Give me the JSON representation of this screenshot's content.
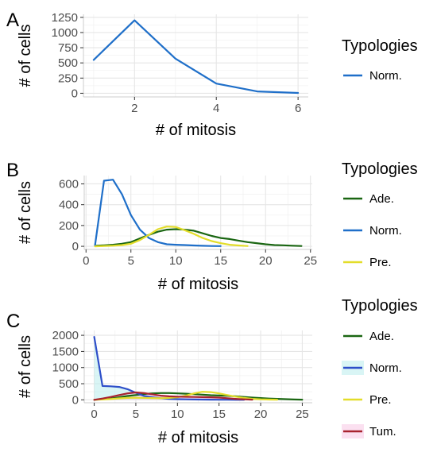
{
  "chart_data": [
    {
      "panel": "A",
      "type": "line",
      "xlabel": "# of mitosis",
      "ylabel": "# of cells",
      "xlim": [
        0.75,
        6.25
      ],
      "ylim": [
        -60,
        1300
      ],
      "xticks": [
        2,
        4,
        6
      ],
      "yticks": [
        0,
        250,
        500,
        750,
        1000,
        1250
      ],
      "ytick_labels": [
        "0",
        "250",
        "500",
        "750",
        "1000",
        "1250"
      ],
      "legend": {
        "title": "Typologies",
        "position": "right"
      },
      "grid": true,
      "series": [
        {
          "name": "Norm.",
          "color": "#1f6fc9",
          "points": [
            [
              1,
              550
            ],
            [
              2,
              1200
            ],
            [
              3,
              570
            ],
            [
              4,
              160
            ],
            [
              5,
              30
            ],
            [
              6,
              5
            ]
          ]
        }
      ]
    },
    {
      "panel": "B",
      "type": "line",
      "xlabel": "# of mitosis",
      "ylabel": "# of cells",
      "xlim": [
        -0.2,
        25.2
      ],
      "ylim": [
        -30,
        680
      ],
      "xticks": [
        0,
        5,
        10,
        15,
        20,
        25
      ],
      "yticks": [
        0,
        200,
        400,
        600
      ],
      "ytick_labels": [
        "0",
        "200",
        "400",
        "600"
      ],
      "legend": {
        "title": "Typologies",
        "position": "right"
      },
      "grid": true,
      "series": [
        {
          "name": "Ade.",
          "color": "#1a6612",
          "points": [
            [
              1,
              5
            ],
            [
              2,
              10
            ],
            [
              3,
              15
            ],
            [
              4,
              25
            ],
            [
              5,
              40
            ],
            [
              6,
              75
            ],
            [
              7,
              110
            ],
            [
              8,
              140
            ],
            [
              9,
              160
            ],
            [
              10,
              165
            ],
            [
              11,
              160
            ],
            [
              12,
              150
            ],
            [
              13,
              125
            ],
            [
              14,
              100
            ],
            [
              15,
              80
            ],
            [
              16,
              70
            ],
            [
              17,
              55
            ],
            [
              18,
              40
            ],
            [
              19,
              30
            ],
            [
              20,
              20
            ],
            [
              21,
              12
            ],
            [
              22,
              10
            ],
            [
              23,
              6
            ],
            [
              24,
              3
            ]
          ]
        },
        {
          "name": "Norm.",
          "color": "#1f6fc9",
          "points": [
            [
              1,
              10
            ],
            [
              2,
              630
            ],
            [
              3,
              640
            ],
            [
              4,
              500
            ],
            [
              5,
              300
            ],
            [
              6,
              160
            ],
            [
              7,
              80
            ],
            [
              8,
              40
            ],
            [
              9,
              20
            ],
            [
              10,
              15
            ],
            [
              11,
              12
            ],
            [
              12,
              8
            ],
            [
              13,
              5
            ],
            [
              14,
              3
            ],
            [
              15,
              2
            ]
          ]
        },
        {
          "name": "Pre.",
          "color": "#e3dd2a",
          "points": [
            [
              1,
              0
            ],
            [
              2,
              3
            ],
            [
              3,
              6
            ],
            [
              4,
              12
            ],
            [
              5,
              25
            ],
            [
              6,
              60
            ],
            [
              7,
              110
            ],
            [
              8,
              165
            ],
            [
              9,
              190
            ],
            [
              10,
              185
            ],
            [
              11,
              155
            ],
            [
              12,
              120
            ],
            [
              13,
              80
            ],
            [
              14,
              50
            ],
            [
              15,
              30
            ],
            [
              16,
              15
            ],
            [
              17,
              8
            ],
            [
              18,
              3
            ]
          ]
        }
      ]
    },
    {
      "panel": "C",
      "type": "line",
      "xlabel": "# of mitosis",
      "ylabel": "# of cells",
      "xlim": [
        -1.2,
        26.2
      ],
      "ylim": [
        -90,
        2150
      ],
      "xticks": [
        0,
        5,
        10,
        15,
        20,
        25
      ],
      "yticks": [
        0,
        500,
        1000,
        1500,
        2000
      ],
      "ytick_labels": [
        "0",
        "500",
        "1000",
        "1500",
        "2000"
      ],
      "legend": {
        "title": "Typologies",
        "position": "right"
      },
      "grid": true,
      "series": [
        {
          "name": "Ade.",
          "color": "#1a6612",
          "points": [
            [
              0,
              0
            ],
            [
              1,
              20
            ],
            [
              2,
              40
            ],
            [
              3,
              80
            ],
            [
              4,
              120
            ],
            [
              5,
              150
            ],
            [
              6,
              180
            ],
            [
              7,
              200
            ],
            [
              8,
              210
            ],
            [
              9,
              210
            ],
            [
              10,
              200
            ],
            [
              11,
              190
            ],
            [
              12,
              175
            ],
            [
              13,
              160
            ],
            [
              14,
              145
            ],
            [
              15,
              135
            ],
            [
              16,
              125
            ],
            [
              17,
              110
            ],
            [
              18,
              90
            ],
            [
              19,
              70
            ],
            [
              20,
              55
            ],
            [
              21,
              40
            ],
            [
              22,
              30
            ],
            [
              23,
              20
            ],
            [
              24,
              12
            ],
            [
              25,
              6
            ]
          ]
        },
        {
          "name": "Norm.",
          "color": "#2e4fc9",
          "fill": "#b9ecec",
          "points": [
            [
              0,
              1950
            ],
            [
              1,
              430
            ],
            [
              2,
              420
            ],
            [
              3,
              400
            ],
            [
              4,
              330
            ],
            [
              5,
              220
            ],
            [
              6,
              120
            ],
            [
              7,
              80
            ],
            [
              8,
              50
            ],
            [
              9,
              30
            ],
            [
              10,
              20
            ],
            [
              11,
              15
            ],
            [
              12,
              10
            ],
            [
              13,
              8
            ],
            [
              14,
              6
            ],
            [
              15,
              4
            ],
            [
              16,
              3
            ],
            [
              17,
              2
            ],
            [
              18,
              1
            ]
          ]
        },
        {
          "name": "Pre.",
          "color": "#e3dd2a",
          "points": [
            [
              0,
              0
            ],
            [
              1,
              10
            ],
            [
              2,
              25
            ],
            [
              3,
              45
            ],
            [
              4,
              60
            ],
            [
              5,
              65
            ],
            [
              6,
              60
            ],
            [
              7,
              55
            ],
            [
              8,
              50
            ],
            [
              9,
              60
            ],
            [
              10,
              80
            ],
            [
              11,
              130
            ],
            [
              12,
              200
            ],
            [
              13,
              250
            ],
            [
              14,
              240
            ],
            [
              15,
              200
            ],
            [
              16,
              150
            ],
            [
              17,
              100
            ],
            [
              18,
              60
            ],
            [
              19,
              30
            ],
            [
              20,
              15
            ],
            [
              21,
              8
            ],
            [
              22,
              3
            ]
          ]
        },
        {
          "name": "Tum.",
          "color": "#a8232e",
          "fill": "#f7c6e3",
          "points": [
            [
              0,
              0
            ],
            [
              1,
              40
            ],
            [
              2,
              90
            ],
            [
              3,
              150
            ],
            [
              4,
              200
            ],
            [
              5,
              230
            ],
            [
              6,
              210
            ],
            [
              7,
              170
            ],
            [
              8,
              130
            ],
            [
              9,
              110
            ],
            [
              10,
              100
            ],
            [
              11,
              95
            ],
            [
              12,
              90
            ],
            [
              13,
              85
            ],
            [
              14,
              80
            ],
            [
              15,
              70
            ],
            [
              16,
              50
            ],
            [
              17,
              30
            ],
            [
              18,
              15
            ],
            [
              19,
              6
            ]
          ]
        }
      ]
    }
  ]
}
